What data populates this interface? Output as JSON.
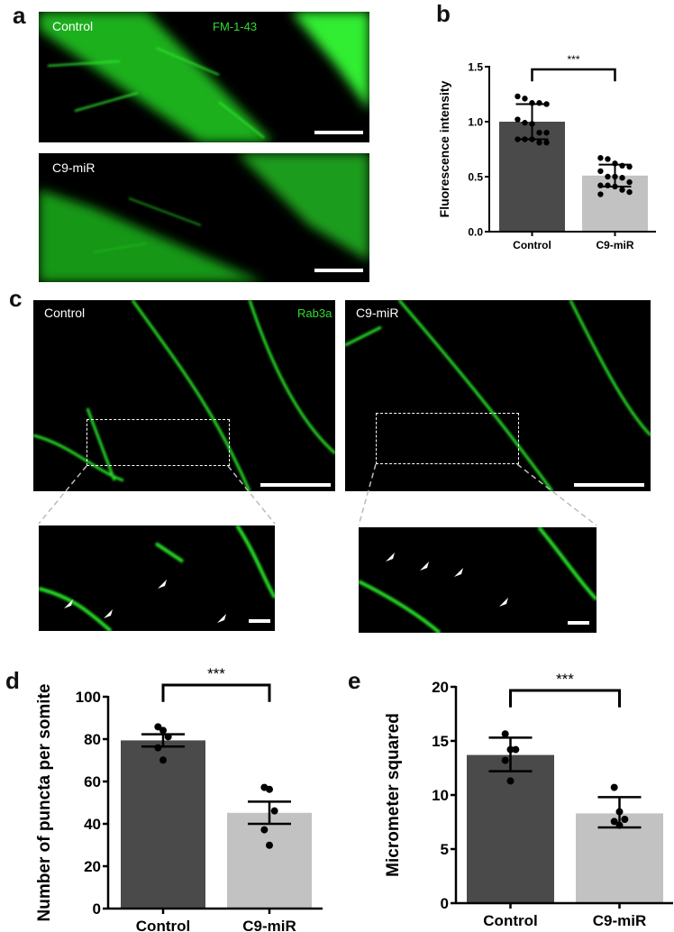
{
  "panels": {
    "a": {
      "label": "a",
      "top_label": "Control",
      "bottom_label": "C9-miR",
      "stain": "FM-1-43"
    },
    "b": {
      "label": "b"
    },
    "c": {
      "label": "c",
      "left_label": "Control",
      "right_label": "C9-miR",
      "stain": "Rab3a"
    },
    "d": {
      "label": "d"
    },
    "e": {
      "label": "e"
    }
  },
  "colors": {
    "control_bar": "#4a4a4a",
    "c9_bar": "#c2c2c2",
    "fluorescence": "#22e022"
  },
  "chart_data": [
    {
      "id": "b",
      "type": "bar",
      "ylabel": "Fluorescence intensity",
      "categories": [
        "Control",
        "C9-miR"
      ],
      "ylim": [
        0,
        1.5
      ],
      "yticks": [
        "0.0",
        "0.5",
        "1.0",
        "1.5"
      ],
      "values": [
        1.0,
        0.51
      ],
      "error": [
        [
          0.84,
          1.16
        ],
        [
          0.41,
          0.61
        ]
      ],
      "points": [
        [
          1.23,
          1.21,
          1.17,
          1.17,
          1.16,
          1.02,
          0.99,
          0.98,
          0.9,
          0.9,
          0.84,
          0.84,
          0.84,
          0.81,
          0.81
        ],
        [
          0.67,
          0.66,
          0.62,
          0.6,
          0.59,
          0.55,
          0.5,
          0.5,
          0.49,
          0.45,
          0.42,
          0.42,
          0.41,
          0.38,
          0.36,
          0.34
        ]
      ],
      "significance": "***"
    },
    {
      "id": "d",
      "type": "bar",
      "ylabel": "Number of puncta per somite",
      "categories": [
        "Control",
        "C9-miR"
      ],
      "ylim": [
        0,
        100
      ],
      "yticks": [
        "0",
        "20",
        "40",
        "60",
        "80",
        "100"
      ],
      "values": [
        79.4,
        45.2
      ],
      "error": [
        [
          76.5,
          82.3
        ],
        [
          40.0,
          50.5
        ]
      ],
      "points": [
        [
          85.8,
          84.1,
          81.1,
          75.9,
          70.1
        ],
        [
          57.2,
          56.3,
          46.1,
          37.2,
          29.9
        ]
      ],
      "significance": "***"
    },
    {
      "id": "e",
      "type": "bar",
      "ylabel": "Micrometer squared",
      "categories": [
        "Control",
        "C9-miR"
      ],
      "ylim": [
        0,
        20
      ],
      "yticks": [
        "0",
        "5",
        "10",
        "15",
        "20"
      ],
      "values": [
        13.7,
        8.3
      ],
      "error": [
        [
          12.2,
          15.3
        ],
        [
          7.0,
          9.8
        ]
      ],
      "points": [
        [
          15.65,
          14.2,
          14.2,
          13.2,
          11.3
        ],
        [
          10.7,
          8.45,
          7.75,
          7.55,
          7.2
        ]
      ],
      "significance": "***"
    }
  ]
}
